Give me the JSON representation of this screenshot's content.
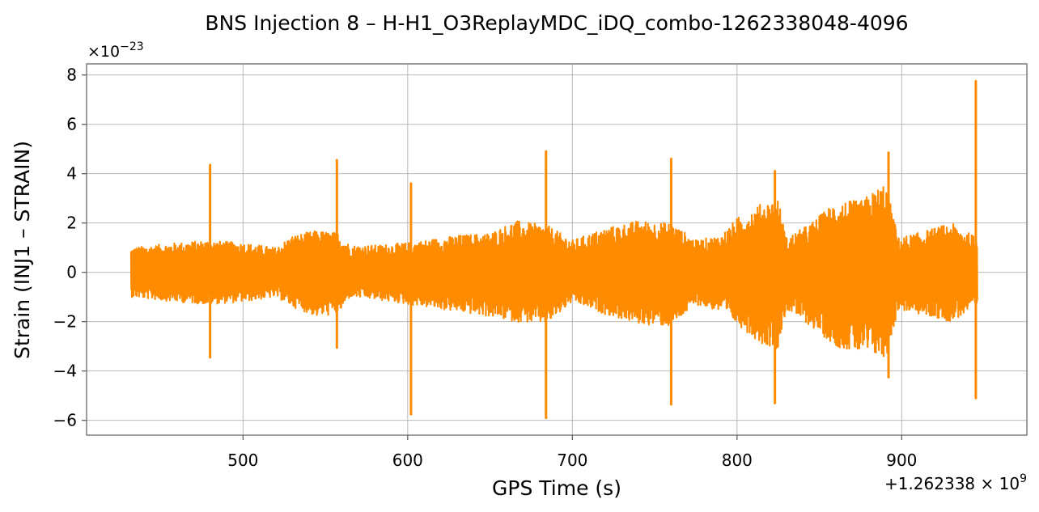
{
  "chart_data": {
    "type": "line",
    "title": "BNS Injection 8 – H-H1_O3ReplayMDC_iDQ_combo-1262338048-4096",
    "xlabel": "GPS Time (s)",
    "ylabel": "Strain (INJ1 – STRAIN)",
    "x_offset_label": "+1.262338 × 10",
    "x_offset_exponent": "9",
    "y_scale_label": "×10",
    "y_scale_exponent": "−23",
    "xlim": [
      405,
      976
    ],
    "ylim": [
      -6.6,
      8.45
    ],
    "x_ticks": [
      500,
      600,
      700,
      800,
      900
    ],
    "x_tick_labels": [
      "500",
      "600",
      "700",
      "800",
      "900"
    ],
    "y_ticks": [
      -6,
      -4,
      -2,
      0,
      2,
      4,
      6,
      8
    ],
    "y_tick_labels": [
      "−6",
      "−4",
      "−2",
      "0",
      "2",
      "4",
      "6",
      "8"
    ],
    "grid": true,
    "series": [
      {
        "color": "#ff8c00",
        "x_range": [
          432,
          946
        ],
        "envelope_upper": [
          [
            432,
            1.0
          ],
          [
            445,
            1.1
          ],
          [
            460,
            1.2
          ],
          [
            478,
            1.3
          ],
          [
            500,
            1.2
          ],
          [
            520,
            1.0
          ],
          [
            530,
            1.5
          ],
          [
            545,
            1.7
          ],
          [
            558,
            1.6
          ],
          [
            565,
            1.1
          ],
          [
            580,
            1.1
          ],
          [
            600,
            1.2
          ],
          [
            610,
            1.3
          ],
          [
            630,
            1.5
          ],
          [
            650,
            1.6
          ],
          [
            665,
            2.1
          ],
          [
            685,
            1.9
          ],
          [
            700,
            1.3
          ],
          [
            720,
            1.8
          ],
          [
            740,
            2.1
          ],
          [
            760,
            2.0
          ],
          [
            775,
            1.3
          ],
          [
            790,
            1.5
          ],
          [
            800,
            2.2
          ],
          [
            815,
            2.8
          ],
          [
            825,
            3.0
          ],
          [
            830,
            1.4
          ],
          [
            845,
            2.0
          ],
          [
            860,
            2.9
          ],
          [
            875,
            2.9
          ],
          [
            885,
            3.4
          ],
          [
            890,
            3.7
          ],
          [
            898,
            1.4
          ],
          [
            910,
            1.6
          ],
          [
            930,
            2.0
          ],
          [
            946,
            1.4
          ]
        ],
        "envelope_lower": [
          [
            432,
            -1.0
          ],
          [
            445,
            -1.1
          ],
          [
            460,
            -1.2
          ],
          [
            478,
            -1.3
          ],
          [
            500,
            -1.2
          ],
          [
            520,
            -1.0
          ],
          [
            530,
            -1.4
          ],
          [
            545,
            -1.8
          ],
          [
            558,
            -1.7
          ],
          [
            565,
            -1.0
          ],
          [
            580,
            -1.1
          ],
          [
            600,
            -1.3
          ],
          [
            610,
            -1.4
          ],
          [
            630,
            -1.6
          ],
          [
            650,
            -1.8
          ],
          [
            665,
            -2.0
          ],
          [
            685,
            -2.1
          ],
          [
            700,
            -1.2
          ],
          [
            720,
            -1.7
          ],
          [
            740,
            -2.1
          ],
          [
            760,
            -2.2
          ],
          [
            775,
            -1.3
          ],
          [
            790,
            -1.6
          ],
          [
            800,
            -2.1
          ],
          [
            815,
            -2.9
          ],
          [
            825,
            -3.1
          ],
          [
            830,
            -1.5
          ],
          [
            845,
            -2.2
          ],
          [
            860,
            -3.0
          ],
          [
            875,
            -3.3
          ],
          [
            885,
            -3.4
          ],
          [
            890,
            -3.6
          ],
          [
            898,
            -1.5
          ],
          [
            910,
            -1.7
          ],
          [
            930,
            -2.0
          ],
          [
            946,
            -1.4
          ]
        ],
        "spikes": [
          {
            "x": 480,
            "max": 4.35,
            "min": -3.45
          },
          {
            "x": 557,
            "max": 4.55,
            "min": -3.05
          },
          {
            "x": 602,
            "max": 3.6,
            "min": -5.75
          },
          {
            "x": 684,
            "max": 4.9,
            "min": -5.9
          },
          {
            "x": 760,
            "max": 4.6,
            "min": -5.35
          },
          {
            "x": 823,
            "max": 4.1,
            "min": -5.3
          },
          {
            "x": 892,
            "max": 4.85,
            "min": -4.25
          },
          {
            "x": 945,
            "max": 7.75,
            "min": -5.1
          }
        ]
      }
    ]
  }
}
